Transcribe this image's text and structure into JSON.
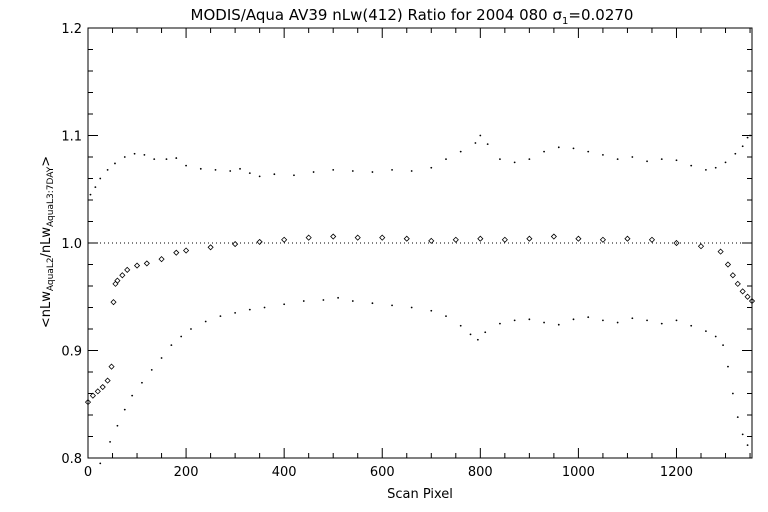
{
  "chart_data": {
    "type": "scatter",
    "title_main": "MODIS/Aqua AV39 nLw(412) Ratio for 2004 080 ",
    "title_sigma": "σ",
    "title_sigma_sub": "1",
    "title_sigma_value": "=0.0270",
    "xlabel": "Scan Pixel",
    "ylabel_lt": "<nLw",
    "ylabel_sub1": "AquaL2",
    "ylabel_mid": "/nLw",
    "ylabel_sub2": "AquaL3:7DAY",
    "ylabel_gt": ">",
    "xlim": [
      0,
      1354
    ],
    "ylim": [
      0.8,
      1.2
    ],
    "x_ticks": [
      0,
      200,
      400,
      600,
      800,
      1000,
      1200
    ],
    "x_tick_labels": [
      "0",
      "200",
      "400",
      "600",
      "800",
      "1000",
      "1200"
    ],
    "y_ticks": [
      0.8,
      0.9,
      1.0,
      1.1,
      1.2
    ],
    "y_tick_labels": [
      "0.8",
      "0.9",
      "1.0",
      "1.1",
      "1.2"
    ],
    "reference_line_y": 1.0,
    "series": [
      {
        "role": "mean ratio",
        "marker": "diamond",
        "points": [
          [
            0,
            0.852
          ],
          [
            10,
            0.858
          ],
          [
            20,
            0.862
          ],
          [
            30,
            0.866
          ],
          [
            40,
            0.872
          ],
          [
            48,
            0.885
          ],
          [
            52,
            0.945
          ],
          [
            56,
            0.962
          ],
          [
            60,
            0.965
          ],
          [
            70,
            0.97
          ],
          [
            80,
            0.975
          ],
          [
            100,
            0.979
          ],
          [
            120,
            0.981
          ],
          [
            150,
            0.985
          ],
          [
            180,
            0.991
          ],
          [
            200,
            0.993
          ],
          [
            250,
            0.996
          ],
          [
            300,
            0.999
          ],
          [
            350,
            1.001
          ],
          [
            400,
            1.003
          ],
          [
            450,
            1.005
          ],
          [
            500,
            1.006
          ],
          [
            550,
            1.005
          ],
          [
            600,
            1.005
          ],
          [
            650,
            1.004
          ],
          [
            700,
            1.002
          ],
          [
            750,
            1.003
          ],
          [
            800,
            1.004
          ],
          [
            850,
            1.003
          ],
          [
            900,
            1.004
          ],
          [
            950,
            1.006
          ],
          [
            1000,
            1.004
          ],
          [
            1050,
            1.003
          ],
          [
            1100,
            1.004
          ],
          [
            1150,
            1.003
          ],
          [
            1200,
            1.0
          ],
          [
            1250,
            0.997
          ],
          [
            1290,
            0.992
          ],
          [
            1305,
            0.98
          ],
          [
            1315,
            0.97
          ],
          [
            1325,
            0.962
          ],
          [
            1335,
            0.955
          ],
          [
            1345,
            0.95
          ],
          [
            1354,
            0.946
          ]
        ]
      },
      {
        "role": "mean + sigma",
        "marker": "dot",
        "points": [
          [
            5,
            1.045
          ],
          [
            15,
            1.052
          ],
          [
            25,
            1.06
          ],
          [
            40,
            1.068
          ],
          [
            55,
            1.074
          ],
          [
            75,
            1.08
          ],
          [
            95,
            1.083
          ],
          [
            115,
            1.082
          ],
          [
            135,
            1.078
          ],
          [
            160,
            1.078
          ],
          [
            180,
            1.079
          ],
          [
            200,
            1.072
          ],
          [
            230,
            1.069
          ],
          [
            260,
            1.068
          ],
          [
            290,
            1.067
          ],
          [
            310,
            1.069
          ],
          [
            330,
            1.065
          ],
          [
            350,
            1.062
          ],
          [
            380,
            1.064
          ],
          [
            420,
            1.063
          ],
          [
            460,
            1.066
          ],
          [
            500,
            1.068
          ],
          [
            540,
            1.067
          ],
          [
            580,
            1.066
          ],
          [
            620,
            1.068
          ],
          [
            660,
            1.067
          ],
          [
            700,
            1.07
          ],
          [
            730,
            1.078
          ],
          [
            760,
            1.085
          ],
          [
            790,
            1.093
          ],
          [
            800,
            1.1
          ],
          [
            815,
            1.092
          ],
          [
            840,
            1.078
          ],
          [
            870,
            1.075
          ],
          [
            900,
            1.078
          ],
          [
            930,
            1.085
          ],
          [
            960,
            1.089
          ],
          [
            990,
            1.088
          ],
          [
            1020,
            1.085
          ],
          [
            1050,
            1.082
          ],
          [
            1080,
            1.078
          ],
          [
            1110,
            1.08
          ],
          [
            1140,
            1.076
          ],
          [
            1170,
            1.078
          ],
          [
            1200,
            1.077
          ],
          [
            1230,
            1.072
          ],
          [
            1260,
            1.068
          ],
          [
            1280,
            1.07
          ],
          [
            1300,
            1.075
          ],
          [
            1320,
            1.083
          ],
          [
            1335,
            1.09
          ],
          [
            1345,
            1.098
          ],
          [
            1350,
            1.1
          ]
        ]
      },
      {
        "role": "mean - sigma",
        "marker": "dot",
        "points": [
          [
            25,
            0.795
          ],
          [
            45,
            0.815
          ],
          [
            60,
            0.83
          ],
          [
            75,
            0.845
          ],
          [
            90,
            0.858
          ],
          [
            110,
            0.87
          ],
          [
            130,
            0.882
          ],
          [
            150,
            0.893
          ],
          [
            170,
            0.905
          ],
          [
            190,
            0.913
          ],
          [
            210,
            0.92
          ],
          [
            240,
            0.927
          ],
          [
            270,
            0.932
          ],
          [
            300,
            0.935
          ],
          [
            330,
            0.938
          ],
          [
            360,
            0.94
          ],
          [
            400,
            0.943
          ],
          [
            440,
            0.946
          ],
          [
            480,
            0.947
          ],
          [
            510,
            0.949
          ],
          [
            540,
            0.946
          ],
          [
            580,
            0.944
          ],
          [
            620,
            0.942
          ],
          [
            660,
            0.94
          ],
          [
            700,
            0.937
          ],
          [
            730,
            0.932
          ],
          [
            760,
            0.923
          ],
          [
            780,
            0.915
          ],
          [
            795,
            0.91
          ],
          [
            810,
            0.917
          ],
          [
            840,
            0.925
          ],
          [
            870,
            0.928
          ],
          [
            900,
            0.929
          ],
          [
            930,
            0.926
          ],
          [
            960,
            0.924
          ],
          [
            990,
            0.929
          ],
          [
            1020,
            0.931
          ],
          [
            1050,
            0.928
          ],
          [
            1080,
            0.926
          ],
          [
            1110,
            0.93
          ],
          [
            1140,
            0.928
          ],
          [
            1170,
            0.925
          ],
          [
            1200,
            0.928
          ],
          [
            1230,
            0.923
          ],
          [
            1260,
            0.918
          ],
          [
            1280,
            0.913
          ],
          [
            1295,
            0.905
          ],
          [
            1305,
            0.885
          ],
          [
            1315,
            0.86
          ],
          [
            1325,
            0.838
          ],
          [
            1335,
            0.822
          ],
          [
            1345,
            0.812
          ]
        ]
      }
    ]
  }
}
